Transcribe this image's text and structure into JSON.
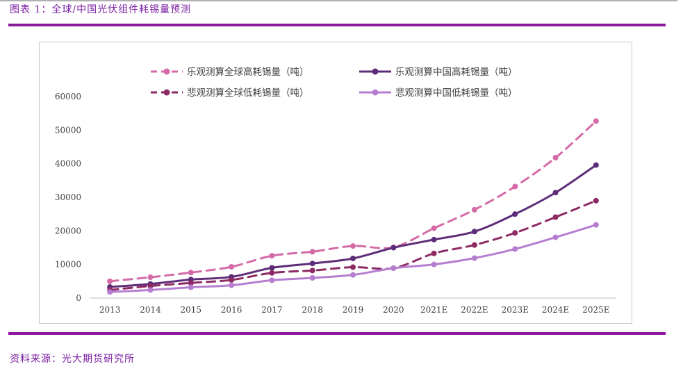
{
  "header": {
    "title": "图表 1：全球/中国光伏组件耗锡量预测"
  },
  "footer": {
    "source": "资料来源：光大期货研究所"
  },
  "colors": {
    "accent": "#8b1a9c",
    "title_text": "#7b1fa2"
  },
  "chart_data": {
    "type": "line",
    "title": "",
    "xlabel": "",
    "ylabel": "",
    "ylim": [
      0,
      60000
    ],
    "yticks": [
      0,
      10000,
      20000,
      30000,
      40000,
      50000,
      60000
    ],
    "grid": false,
    "legend_position": "top",
    "categories": [
      "2013",
      "2014",
      "2015",
      "2016",
      "2017",
      "2018",
      "2019",
      "2020",
      "2021E",
      "2022E",
      "2023E",
      "2024E",
      "2025E"
    ],
    "series": [
      {
        "name": "乐观测算全球高耗锡量（吨）",
        "color": "#d46aa6",
        "dash": true,
        "values": [
          5000,
          6200,
          7600,
          9300,
          12600,
          13800,
          15500,
          15100,
          20800,
          26300,
          33200,
          41800,
          52700
        ]
      },
      {
        "name": "乐观测算中国高耗锡量（吨）",
        "color": "#5e2d79",
        "dash": false,
        "values": [
          3300,
          4200,
          5500,
          6300,
          9000,
          10300,
          11800,
          15000,
          17400,
          19800,
          25000,
          31400,
          39600
        ]
      },
      {
        "name": "悲观测算全球低耗锡量（吨）",
        "color": "#8e2a63",
        "dash": true,
        "values": [
          2400,
          3600,
          4500,
          5400,
          7500,
          8200,
          9200,
          8900,
          13300,
          15800,
          19400,
          24100,
          29000
        ]
      },
      {
        "name": "悲观测算中国低耗锡量（吨）",
        "color": "#b57ed0",
        "dash": false,
        "values": [
          1800,
          2400,
          3200,
          3800,
          5300,
          6000,
          6900,
          8900,
          10000,
          11900,
          14600,
          18100,
          21800
        ]
      }
    ]
  }
}
